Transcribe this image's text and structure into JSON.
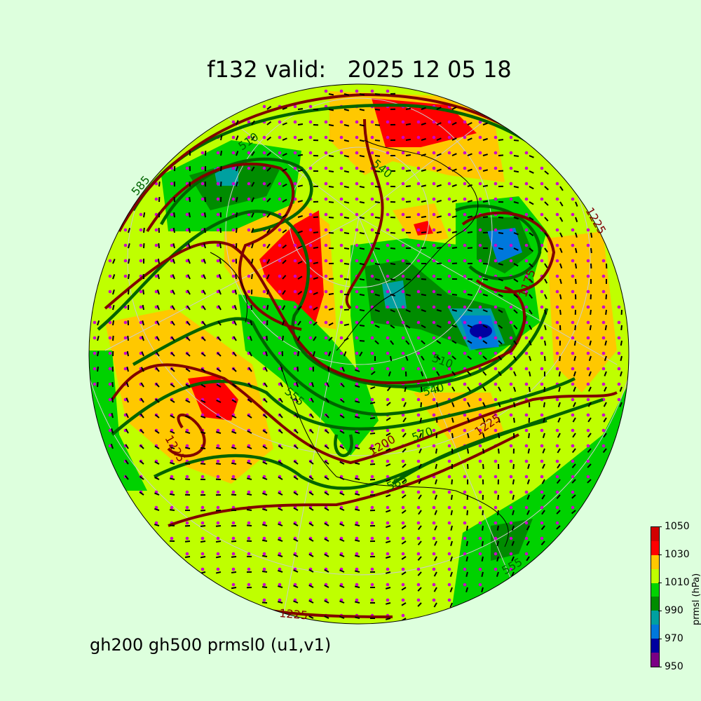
{
  "title": "f132 valid:   2025 12 05 18",
  "subtitle": "gh200 gh500 prmsl0 (u1,v1)",
  "colorbar": {
    "label": "prmsl (hPa)",
    "ticks": [
      "1050",
      "1030",
      "1010",
      "990",
      "970",
      "950"
    ],
    "range": [
      950,
      1050
    ],
    "bins": [
      {
        "from": 950,
        "to": 960,
        "color": "#7b0085"
      },
      {
        "from": 960,
        "to": 970,
        "color": "#0000a0"
      },
      {
        "from": 970,
        "to": 980,
        "color": "#0078dc"
      },
      {
        "from": 980,
        "to": 990,
        "color": "#00a0a0"
      },
      {
        "from": 990,
        "to": 1000,
        "color": "#008c00"
      },
      {
        "from": 1000,
        "to": 1010,
        "color": "#00d200"
      },
      {
        "from": 1010,
        "to": 1020,
        "color": "#bfff00"
      },
      {
        "from": 1020,
        "to": 1030,
        "color": "#ffc800"
      },
      {
        "from": 1030,
        "to": 1040,
        "color": "#ff0000"
      },
      {
        "from": 1040,
        "to": 1050,
        "color": "#d20000"
      }
    ]
  },
  "contour_labels": {
    "gh500": [
      "510",
      "540",
      "555",
      "570",
      "585",
      "585",
      "510",
      "540",
      "555"
    ],
    "gh200": [
      "1200",
      "1225",
      "1225",
      "1175",
      "1225",
      "1225"
    ]
  },
  "colors": {
    "gh500_contour": "#006400",
    "gh200_contour": "#800000",
    "wind_dots": "#cc00cc",
    "background": "#ddffdd"
  }
}
